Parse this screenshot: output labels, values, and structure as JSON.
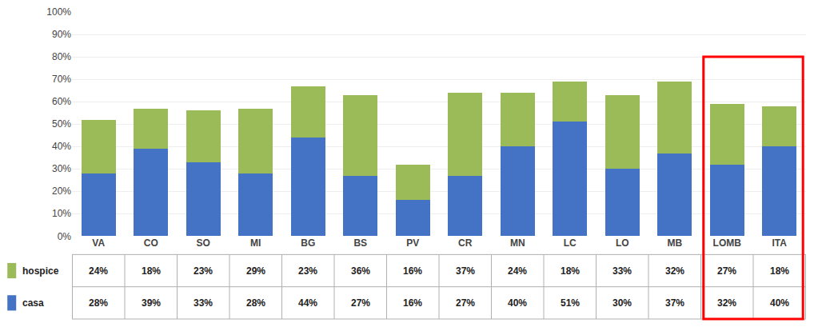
{
  "chart_data": {
    "type": "bar",
    "stacked": true,
    "categories": [
      "VA",
      "CO",
      "SO",
      "MI",
      "BG",
      "BS",
      "PV",
      "CR",
      "MN",
      "LC",
      "LO",
      "MB",
      "LOMB",
      "ITA"
    ],
    "series": [
      {
        "name": "casa",
        "color": "#4472C4",
        "values": [
          28,
          39,
          33,
          28,
          44,
          27,
          16,
          27,
          40,
          51,
          30,
          37,
          32,
          40
        ],
        "value_labels": [
          "28%",
          "39%",
          "33%",
          "28%",
          "44%",
          "27%",
          "16%",
          "27%",
          "40%",
          "51%",
          "30%",
          "37%",
          "32%",
          "40%"
        ]
      },
      {
        "name": "hospice",
        "color": "#9BBB59",
        "values": [
          24,
          18,
          23,
          29,
          23,
          36,
          16,
          37,
          24,
          18,
          33,
          32,
          27,
          18
        ],
        "value_labels": [
          "24%",
          "18%",
          "23%",
          "29%",
          "23%",
          "36%",
          "16%",
          "37%",
          "24%",
          "18%",
          "33%",
          "32%",
          "27%",
          "18%"
        ]
      }
    ],
    "ylim": [
      0,
      100
    ],
    "yticks": [
      {
        "value": 0,
        "label": "0%"
      },
      {
        "value": 10,
        "label": "10%"
      },
      {
        "value": 20,
        "label": "20%"
      },
      {
        "value": 30,
        "label": "30%"
      },
      {
        "value": 40,
        "label": "40%"
      },
      {
        "value": 50,
        "label": "50%"
      },
      {
        "value": 60,
        "label": "60%"
      },
      {
        "value": 70,
        "label": "70%"
      },
      {
        "value": 80,
        "label": "80%"
      },
      {
        "value": 90,
        "label": "90%"
      },
      {
        "value": 100,
        "label": "100%"
      }
    ],
    "grid": true,
    "highlight": {
      "categories": [
        "LOMB",
        "ITA"
      ],
      "color": "#FF0000",
      "y": 80
    }
  }
}
